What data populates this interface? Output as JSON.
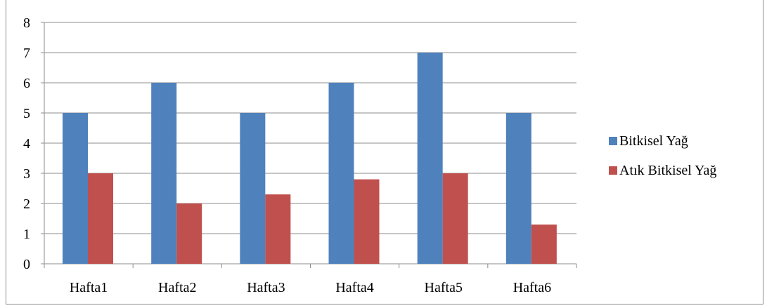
{
  "chart_data": {
    "type": "bar",
    "categories": [
      "Hafta1",
      "Hafta2",
      "Hafta3",
      "Hafta4",
      "Hafta5",
      "Hafta6"
    ],
    "series": [
      {
        "name": "Bitkisel Yağ",
        "values": [
          5,
          6,
          5,
          6,
          7,
          5
        ],
        "color": "#4f81bd"
      },
      {
        "name": "Atık Bitkisel Yağ",
        "values": [
          3,
          2,
          2.3,
          2.8,
          3,
          1.3
        ],
        "color": "#c0504d"
      }
    ],
    "yticks": [
      "0",
      "1",
      "2",
      "3",
      "4",
      "5",
      "6",
      "7",
      "8"
    ],
    "ylim": [
      0,
      8
    ],
    "grid": true,
    "legend_position": "right",
    "title": "",
    "xlabel": "",
    "ylabel": ""
  }
}
